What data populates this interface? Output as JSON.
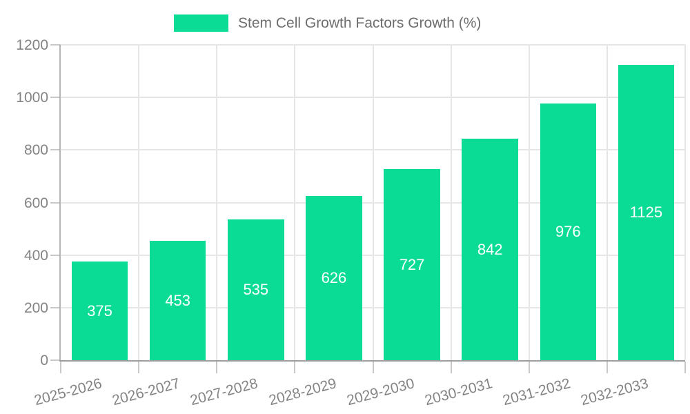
{
  "legend": {
    "items": [
      {
        "label": "Stem Cell Growth Factors Growth (%)",
        "color": "#0adb95"
      }
    ]
  },
  "chart_data": {
    "type": "bar",
    "title": "Stem Cell Growth Factors Growth (%)",
    "categories": [
      "2025-2026",
      "2026-2027",
      "2027-2028",
      "2028-2029",
      "2029-2030",
      "2030-2031",
      "2031-2032",
      "2032-2033"
    ],
    "values": [
      375,
      453,
      535,
      626,
      727,
      842,
      976,
      1125
    ],
    "xlabel": "",
    "ylabel": "",
    "ylim": [
      0,
      1200
    ],
    "yticks": [
      0,
      200,
      400,
      600,
      800,
      1000,
      1200
    ],
    "grid": true,
    "legend_position": "top-center",
    "bar_color": "#0adb95",
    "value_label_color": "#ffffff",
    "axis_label_color": "#838383"
  }
}
